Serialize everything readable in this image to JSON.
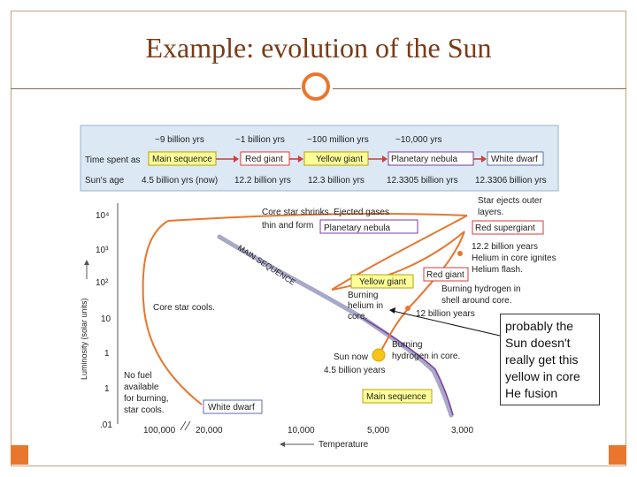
{
  "slide": {
    "title": "Example: evolution of the Sun",
    "note": "probably the Sun doesn't really get this yellow in core He fusion"
  },
  "table": {
    "row_labels": [
      "Time spent as",
      "Sun's age"
    ],
    "durations": [
      "~9 billion yrs",
      "~1 billion yrs",
      "~100 million yrs",
      "~10,000 yrs"
    ],
    "stages": [
      "Main sequence",
      "Red giant",
      "Yellow giant",
      "Planetary nebula",
      "White dwarf"
    ],
    "ages": [
      "4.5 billion yrs (now)",
      "12.2 billion yrs",
      "12.3 billion yrs",
      "12.3305 billion yrs",
      "12.3306 billion yrs"
    ]
  },
  "hr": {
    "y_ticks": [
      "10⁴",
      "10³",
      "10²",
      "10",
      "1",
      "1",
      ".01"
    ],
    "x_ticks": [
      "100,000",
      "20,000",
      "10,000",
      "5,000",
      "3,000"
    ],
    "ylabel": "Luminosity (solar units)",
    "xlabel": "Temperature",
    "main_sequence": "MAIN SEQUENCE",
    "labels": {
      "core_shrinks_1": "Core star shrinks. Ejected gases",
      "core_shrinks_2": "thin and form",
      "planetary_nebula": "Planetary nebula",
      "ejects_1": "Star ejects outer",
      "ejects_2": "layers.",
      "red_supergiant": "Red supergiant",
      "he_1": "12.2 billion years",
      "he_2": "Helium in core ignites",
      "he_3": "Helium flash.",
      "red_giant": "Red giant",
      "yellow_giant": "Yellow giant",
      "bh_1": "Burning",
      "bh_2": "helium in",
      "bh_3": "core.",
      "bhs_1": "Burning hydrogen in",
      "bhs_2": "shell around core.",
      "twelve": "12 billion years",
      "core_cools": "Core star cools.",
      "sun_now_1": "Sun now",
      "sun_now_2": "4.5 billion years",
      "bhc_1": "Burning",
      "bhc_2": "hydrogen in core.",
      "main_sequence_box": "Main sequence",
      "nofuel_1": "No fuel",
      "nofuel_2": "available",
      "nofuel_3": "for burning,",
      "nofuel_4": "star cools.",
      "white_dwarf": "White dwarf"
    }
  },
  "colors": {
    "accent": "#e8762d",
    "title": "#7a3b17",
    "table_bg": "#dce8f3",
    "yellow_box": "#ffff99",
    "red_box": "#ffffff",
    "track": "#e8762d",
    "ms_band": "#a8a8c8"
  }
}
